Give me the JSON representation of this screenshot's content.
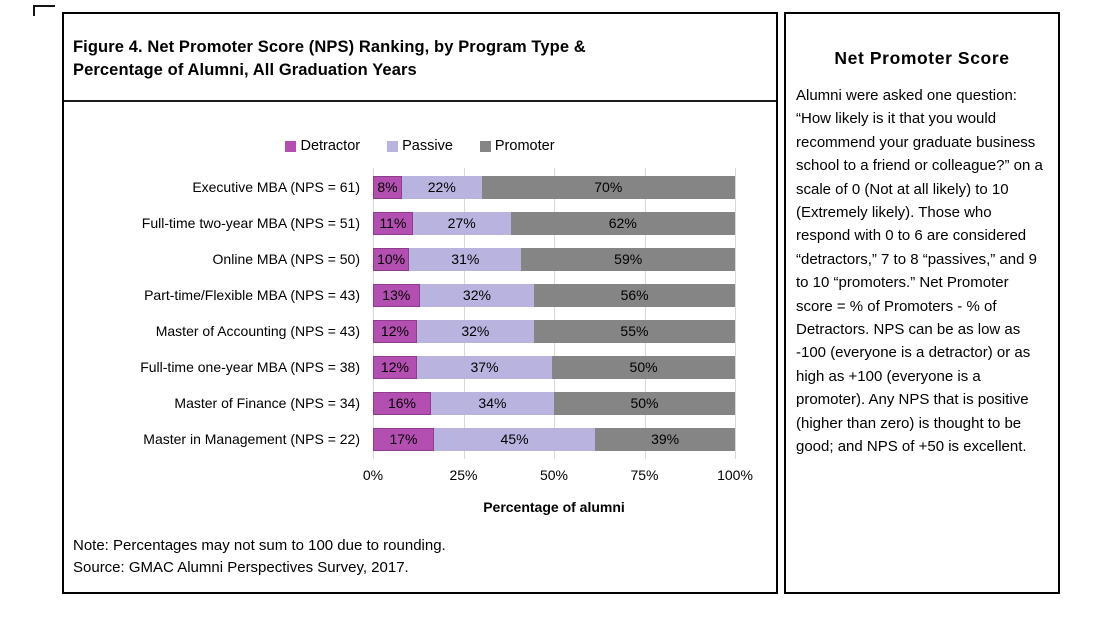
{
  "figure": {
    "title_lines": [
      "Figure 4. Net Promoter Score (NPS) Ranking, by Program Type &",
      "Percentage of Alumni, All Graduation Years"
    ],
    "note": "Note: Percentages may not sum to 100 due to rounding.",
    "source": "Source: GMAC Alumni Perspectives Survey, 2017."
  },
  "chart_data": {
    "type": "bar",
    "orientation": "horizontal",
    "stacked": true,
    "categories": [
      "Executive MBA (NPS = 61)",
      "Full-time two-year MBA (NPS = 51)",
      "Online MBA (NPS = 50)",
      "Part-time/Flexible MBA (NPS = 43)",
      "Master of Accounting (NPS = 43)",
      "Full-time one-year MBA (NPS = 38)",
      "Master of Finance (NPS = 34)",
      "Master in Management (NPS = 22)"
    ],
    "series": [
      {
        "name": "Detractor",
        "color": "#b34fb0",
        "values": [
          8,
          11,
          10,
          13,
          12,
          12,
          16,
          17
        ]
      },
      {
        "name": "Passive",
        "color": "#b9b3df",
        "values": [
          22,
          27,
          31,
          32,
          32,
          37,
          34,
          45
        ]
      },
      {
        "name": "Promoter",
        "color": "#858585",
        "values": [
          70,
          62,
          59,
          56,
          55,
          50,
          50,
          39
        ]
      }
    ],
    "value_suffix": "%",
    "x_ticks": [
      "0%",
      "25%",
      "50%",
      "75%",
      "100%"
    ],
    "xlim": [
      0,
      100
    ],
    "xlabel": "Percentage of alumni",
    "legend_position": "top",
    "grid": true,
    "gridline_color": "#d8d8d8"
  },
  "sidebar": {
    "title": "Net Promoter Score",
    "body": "Alumni were asked one question: “How likely is it that you would recommend your graduate business school to a friend or colleague?” on a scale of 0 (Not at all likely) to 10 (Extremely likely). Those who respond with 0 to 6 are considered “detractors,” 7 to 8 “passives,” and 9 to 10 “promoters.” Net Promoter score = % of Promoters - % of Detractors. NPS can be as low as -100 (everyone is a detractor) or as high as +100 (everyone is a promoter). Any NPS that is positive (higher than zero) is thought to be good; and NPS of +50 is excellent."
  }
}
